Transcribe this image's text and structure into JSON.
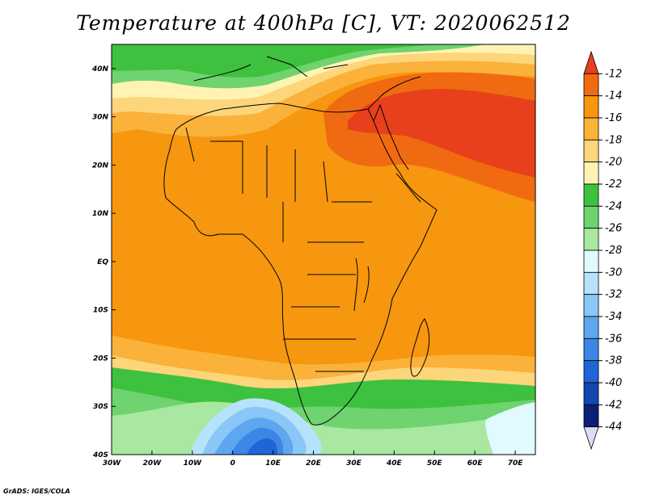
{
  "title": "Temperature at 400hPa [C], VT: 2020062512",
  "credit": "GrADS: IGES/COLA",
  "map": {
    "lon_range": [
      -30,
      75
    ],
    "lat_range": [
      -40,
      45
    ],
    "lon_ticks": [
      {
        "value": -30,
        "label": "30W"
      },
      {
        "value": -20,
        "label": "20W"
      },
      {
        "value": -10,
        "label": "10W"
      },
      {
        "value": 0,
        "label": "0"
      },
      {
        "value": 10,
        "label": "10E"
      },
      {
        "value": 20,
        "label": "20E"
      },
      {
        "value": 30,
        "label": "30E"
      },
      {
        "value": 40,
        "label": "40E"
      },
      {
        "value": 50,
        "label": "50E"
      },
      {
        "value": 60,
        "label": "60E"
      },
      {
        "value": 70,
        "label": "70E"
      }
    ],
    "lat_ticks": [
      {
        "value": 40,
        "label": "40N"
      },
      {
        "value": 30,
        "label": "30N"
      },
      {
        "value": 20,
        "label": "20N"
      },
      {
        "value": 10,
        "label": "10N"
      },
      {
        "value": 0,
        "label": "EQ"
      },
      {
        "value": -10,
        "label": "10S"
      },
      {
        "value": -20,
        "label": "20S"
      },
      {
        "value": -30,
        "label": "30S"
      },
      {
        "value": -40,
        "label": "40S"
      }
    ]
  },
  "colorbar": {
    "labels": [
      "-12",
      "-14",
      "-16",
      "-18",
      "-20",
      "-22",
      "-24",
      "-26",
      "-28",
      "-30",
      "-32",
      "-34",
      "-36",
      "-38",
      "-40",
      "-42",
      "-44"
    ],
    "colors": [
      "#e8401c",
      "#f06a12",
      "#f7960f",
      "#fab23a",
      "#fdd57a",
      "#fff3b3",
      "#3ec13e",
      "#6fd36f",
      "#a8e8a0",
      "#e1faff",
      "#b5e3fb",
      "#8ac7f7",
      "#5ea7ef",
      "#3c86e6",
      "#2064d6",
      "#1446b0",
      "#0c1e78",
      "#dcdcf5"
    ]
  }
}
